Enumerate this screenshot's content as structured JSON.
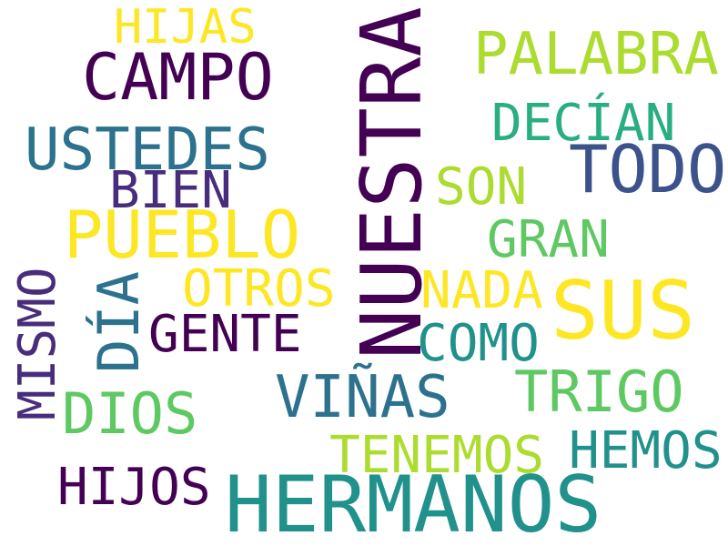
{
  "words": {
    "hijas": "HIJAS",
    "campo": "CAMPO",
    "palabra": "PALABRA",
    "nuestra": "NUESTRA",
    "decian": "DECÍAN",
    "ustedes": "USTEDES",
    "todo": "TODO",
    "bien": "BIEN",
    "son": "SON",
    "pueblo": "PUEBLO",
    "gran": "GRAN",
    "otros": "OTROS",
    "nada": "NADA",
    "sus": "SUS",
    "mismo": "MISMO",
    "dia": "DÍA",
    "gente": "GENTE",
    "como": "COMO",
    "trigo": "TRIGO",
    "vinas": "VIÑAS",
    "dios": "DIOS",
    "tenemos": "TENEMOS",
    "hemos": "HEMOS",
    "hijos": "HIJOS",
    "hermanos": "HERMANOS"
  },
  "colors": {
    "darkpurple": "#440154",
    "purple": "#472d7b",
    "indigo": "#3b528b",
    "blue": "#2c728e",
    "teal": "#21918c",
    "green": "#28ae80",
    "lightgreen": "#5ec962",
    "lime": "#addc30",
    "yellow": "#fde725"
  }
}
